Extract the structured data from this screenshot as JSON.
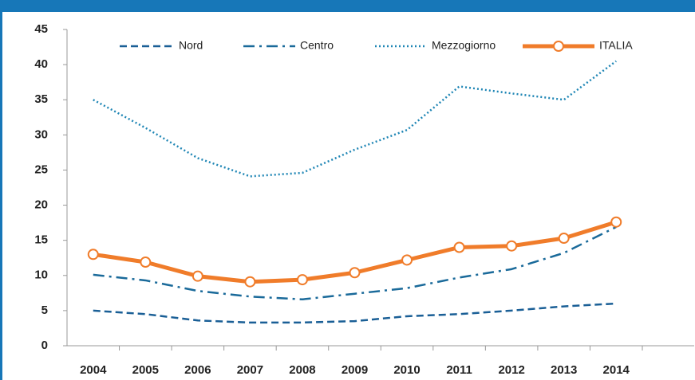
{
  "chart_data": {
    "type": "line",
    "categories": [
      "2004",
      "2005",
      "2006",
      "2007",
      "2008",
      "2009",
      "2010",
      "2011",
      "2012",
      "2013",
      "2014"
    ],
    "series": [
      {
        "name": "Nord",
        "color": "#1a5f96",
        "line_style": "dashed",
        "values": [
          5.0,
          4.5,
          3.6,
          3.3,
          3.3,
          3.5,
          4.2,
          4.5,
          5.0,
          5.6,
          6.0
        ]
      },
      {
        "name": "Centro",
        "color": "#1a6a9a",
        "line_style": "dashdot",
        "values": [
          10.1,
          9.3,
          7.8,
          7.0,
          6.6,
          7.4,
          8.2,
          9.7,
          10.9,
          13.2,
          16.9
        ]
      },
      {
        "name": "Mezzogiorno",
        "color": "#1f86b5",
        "line_style": "dotted",
        "values": [
          35.0,
          31.0,
          26.7,
          24.1,
          24.6,
          27.9,
          30.7,
          36.9,
          35.9,
          35.0,
          40.5
        ]
      },
      {
        "name": "ITALIA",
        "color": "#f07c2a",
        "line_style": "solid",
        "markers": true,
        "values": [
          13.0,
          11.9,
          9.9,
          9.1,
          9.4,
          10.4,
          12.2,
          14.0,
          14.2,
          15.3,
          17.6
        ]
      }
    ],
    "ylim": [
      0,
      45
    ],
    "yticks": [
      0,
      5,
      10,
      15,
      20,
      25,
      30,
      35,
      40,
      45
    ],
    "grid": false,
    "legend": "top"
  }
}
